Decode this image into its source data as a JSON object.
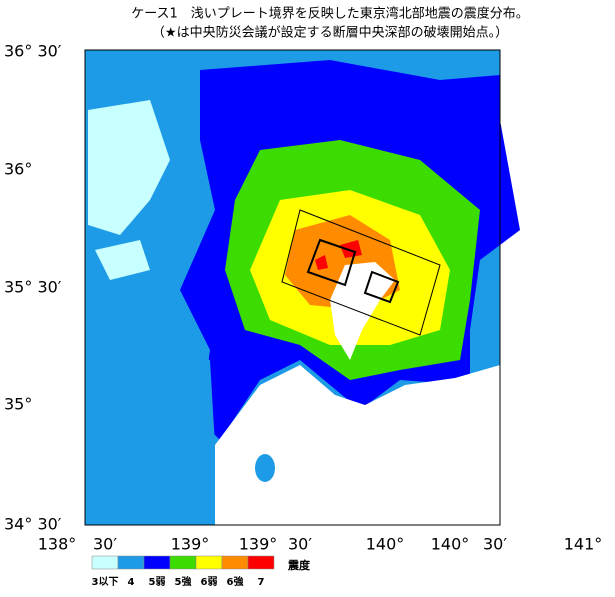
{
  "title": "ケース1　浅いプレート境界を反映した東京湾北部地震の震度分布。",
  "subtitle": "（★は中央防災会議が設定する断層中央深部の破壊開始点。）",
  "lat_labels": [
    "36° 30′",
    "36°",
    "35° 30′",
    "35°",
    "34° 30′"
  ],
  "lon_labels": [
    "138°",
    "30′",
    "139°",
    "139°",
    "30′",
    "140°",
    "140°",
    "30′",
    "141°"
  ],
  "legend": {
    "title": "震度",
    "items": [
      {
        "label": "3以下",
        "color": "#c8ffff"
      },
      {
        "label": "4",
        "color": "#1e9be6"
      },
      {
        "label": "5弱",
        "color": "#0000ff"
      },
      {
        "label": "5強",
        "color": "#3cdc00"
      },
      {
        "label": "6弱",
        "color": "#ffff00"
      },
      {
        "label": "6強",
        "color": "#ff8c00"
      },
      {
        "label": "7",
        "color": "#ff0000"
      }
    ]
  }
}
